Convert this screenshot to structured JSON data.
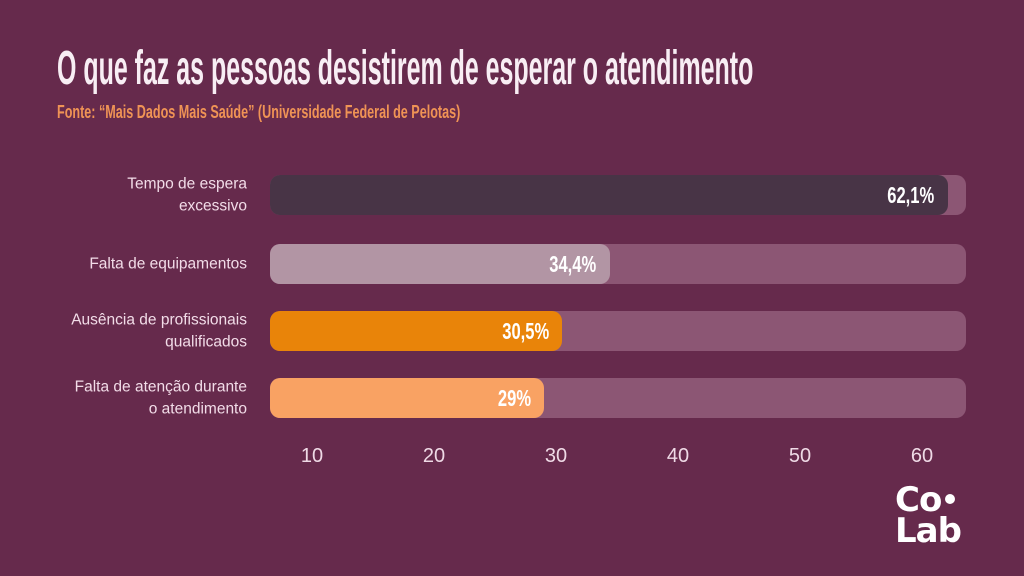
{
  "page": {
    "background_color": "#662A4C"
  },
  "header": {
    "title": "O que faz as pessoas desistirem de esperar o atendimento",
    "subtitle": "Fonte: “Mais Dados Mais Saúde” (Universidade Federal de Pelotas)",
    "title_color": "#F8EEF4",
    "subtitle_color": "#EF9355"
  },
  "chart_data": {
    "type": "bar",
    "orientation": "horizontal",
    "title": "O que faz as pessoas desistirem de esperar o atendimento",
    "source": "Fonte: “Mais Dados Mais Saúde” (Universidade Federal de Pelotas)",
    "categories": [
      "Tempo de espera excessivo",
      "Falta de equipamentos",
      "Ausência de profissionais qualificados",
      "Falta de atenção durante o atendimento"
    ],
    "label_lines": [
      [
        "Tempo de espera",
        "excessivo"
      ],
      [
        "Falta de equipamentos"
      ],
      [
        "Ausência de profissionais",
        "qualificados"
      ],
      [
        "Falta de atenção durante",
        "o atendimento"
      ]
    ],
    "values": [
      62.1,
      34.4,
      30.5,
      29
    ],
    "value_labels": [
      "62,1%",
      "34,4%",
      "30,5%",
      "29%"
    ],
    "bar_colors": [
      "#483446",
      "#B295A4",
      "#E98409",
      "#F9A263"
    ],
    "track_color": "#8C5674",
    "value_label_color": "#FFFFFF",
    "x_ticks": [
      10,
      20,
      30,
      40,
      50,
      60
    ],
    "xlim": [
      0,
      64
    ],
    "grid": false,
    "legend": false
  },
  "logo": {
    "text": "Co.Lab",
    "line1": "Co",
    "line2": "Lab"
  }
}
